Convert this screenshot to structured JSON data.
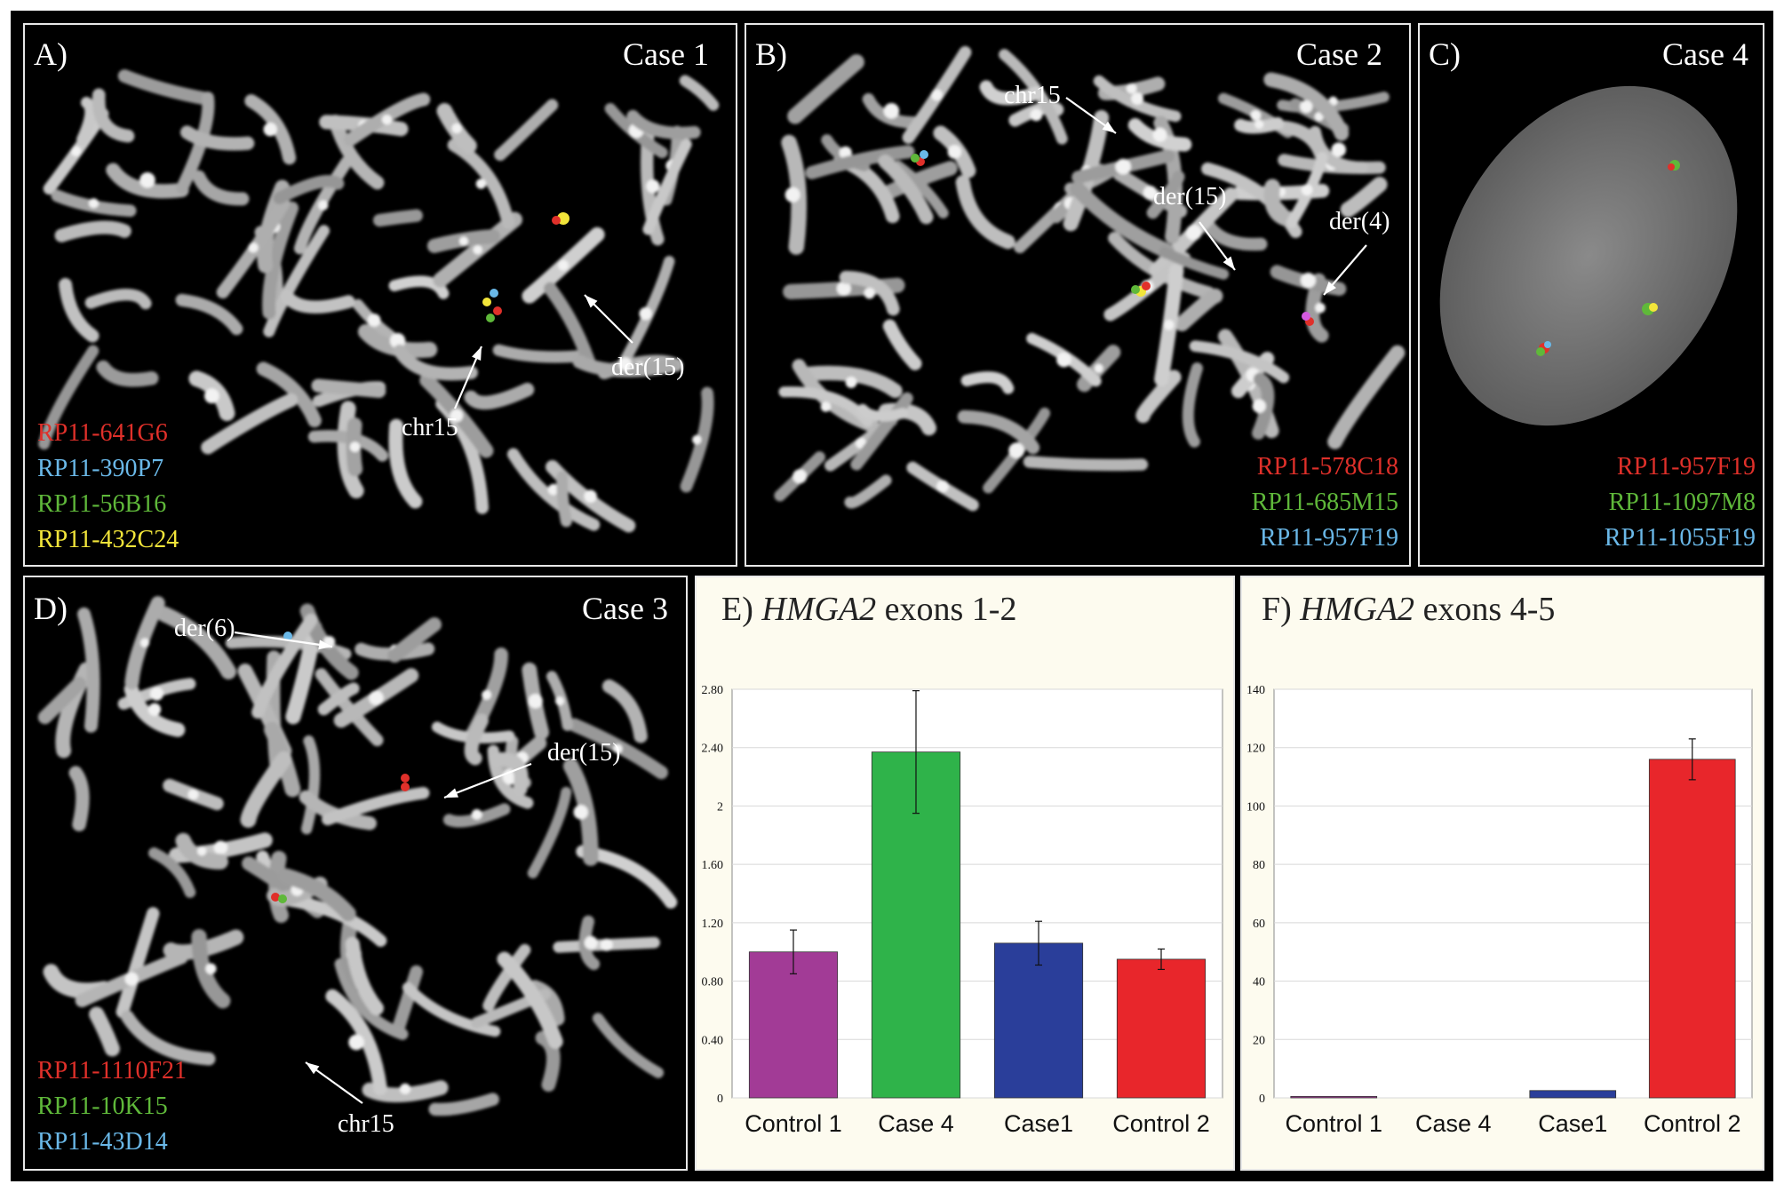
{
  "panels": {
    "a": {
      "label": "A)",
      "title": "Case 1",
      "probes": [
        {
          "name": "RP11-641G6",
          "color": "#e0302a"
        },
        {
          "name": "RP11-390P7",
          "color": "#6ab8e8"
        },
        {
          "name": "RP11-56B16",
          "color": "#5fb83a"
        },
        {
          "name": "RP11-432C24",
          "color": "#f2e53a"
        }
      ],
      "annotations": {
        "der15": "der(15)",
        "chr15": "chr15"
      }
    },
    "b": {
      "label": "B)",
      "title": "Case 2",
      "probes": [
        {
          "name": "RP11-578C18",
          "color": "#e0302a"
        },
        {
          "name": "RP11-685M15",
          "color": "#5fb83a"
        },
        {
          "name": "RP11-957F19",
          "color": "#6ab8e8"
        }
      ],
      "annotations": {
        "chr15": "chr15",
        "der15": "der(15)",
        "der4": "der(4)"
      }
    },
    "c": {
      "label": "C)",
      "title": "Case 4",
      "probes": [
        {
          "name": "RP11-957F19",
          "color": "#e0302a"
        },
        {
          "name": "RP11-1097M8",
          "color": "#5fb83a"
        },
        {
          "name": "RP11-1055F19",
          "color": "#6ab8e8"
        }
      ]
    },
    "d": {
      "label": "D)",
      "title": "Case 3",
      "probes": [
        {
          "name": "RP11-1110F21",
          "color": "#e0302a"
        },
        {
          "name": "RP11-10K15",
          "color": "#5fb83a"
        },
        {
          "name": "RP11-43D14",
          "color": "#6ab8e8"
        }
      ],
      "annotations": {
        "der6": "der(6)",
        "der15": "der(15)",
        "chr15": "chr15"
      }
    }
  },
  "charts": {
    "e": {
      "prefix": "E)",
      "gene": "HMGA2",
      "suffix": "exons 1-2"
    },
    "f": {
      "prefix": "F)",
      "gene": "HMGA2",
      "suffix": "exons 4-5"
    }
  },
  "chart_data": [
    {
      "type": "bar",
      "title": "E) HMGA2 exons 1-2",
      "categories": [
        "Control 1",
        "Case 4",
        "Case1",
        "Control 2"
      ],
      "values": [
        1.0,
        2.37,
        1.06,
        0.95
      ],
      "errors": [
        0.15,
        0.42,
        0.15,
        0.07
      ],
      "colors": [
        "#a23b96",
        "#2fb34a",
        "#2a3e9a",
        "#e8262b"
      ],
      "ylim": [
        0,
        2.8
      ],
      "yticks": [
        "0",
        "0.40",
        "0.80",
        "1.20",
        "1.60",
        "2",
        "2.40",
        "2.80"
      ],
      "ytick_values": [
        0,
        0.4,
        0.8,
        1.2,
        1.6,
        2.0,
        2.4,
        2.8
      ],
      "grid": true
    },
    {
      "type": "bar",
      "title": "F) HMGA2 exons 4-5",
      "categories": [
        "Control 1",
        "Case 4",
        "Case1",
        "Control 2"
      ],
      "values": [
        0.5,
        0,
        2.5,
        116
      ],
      "errors": [
        0,
        0,
        0,
        7
      ],
      "colors": [
        "#a23b96",
        "#2fb34a",
        "#2a3e9a",
        "#e8262b"
      ],
      "ylim": [
        0,
        140
      ],
      "yticks": [
        "0",
        "20",
        "40",
        "60",
        "80",
        "100",
        "120",
        "140"
      ],
      "ytick_values": [
        0,
        20,
        40,
        60,
        80,
        100,
        120,
        140
      ],
      "grid": true
    }
  ]
}
